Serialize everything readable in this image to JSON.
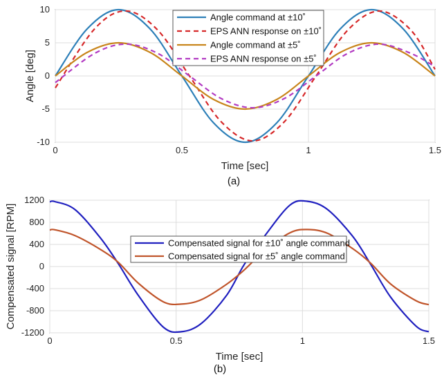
{
  "chart_data": [
    {
      "type": "line",
      "caption": "(a)",
      "xlabel": "Time [sec]",
      "ylabel": "Angle [deg]",
      "xlim": [
        0,
        1.5
      ],
      "ylim": [
        -10,
        10
      ],
      "xticks": [
        "0",
        "0.5",
        "1",
        "1.5"
      ],
      "yticks": [
        "-10",
        "-5",
        "0",
        "5",
        "10"
      ],
      "grid": true,
      "legend_position": "top-right",
      "series": [
        {
          "name": "Angle command at ±10˚",
          "color": "#2c7fb8",
          "dash": "solid",
          "x": [
            0,
            0.125,
            0.25,
            0.375,
            0.5,
            0.625,
            0.75,
            0.875,
            1.0,
            1.125,
            1.25,
            1.375,
            1.5
          ],
          "y": [
            0,
            7.07,
            10,
            7.07,
            0,
            -7.07,
            -10,
            -7.07,
            0,
            7.07,
            10,
            7.07,
            0
          ]
        },
        {
          "name": "EPS ANN response on ±10˚",
          "color": "#d62728",
          "dash": "dashed",
          "x": [
            0,
            0.155,
            0.28,
            0.405,
            0.53,
            0.655,
            0.78,
            0.905,
            1.03,
            1.155,
            1.28,
            1.405,
            1.5
          ],
          "y": [
            -1.8,
            7.1,
            9.8,
            6.9,
            0,
            -6.9,
            -9.8,
            -6.9,
            0,
            6.9,
            9.8,
            6.9,
            1.0
          ]
        },
        {
          "name": "Angle command at ±5˚",
          "color": "#c8841a",
          "dash": "solid",
          "x": [
            0,
            0.125,
            0.25,
            0.375,
            0.5,
            0.625,
            0.75,
            0.875,
            1.0,
            1.125,
            1.25,
            1.375,
            1.5
          ],
          "y": [
            0,
            3.54,
            5,
            3.54,
            0,
            -3.54,
            -5,
            -3.54,
            0,
            3.54,
            5,
            3.54,
            0
          ]
        },
        {
          "name": "EPS ANN response on ±5˚",
          "color": "#b23ac2",
          "dash": "dashed",
          "x": [
            0,
            0.155,
            0.28,
            0.405,
            0.53,
            0.655,
            0.78,
            0.905,
            1.03,
            1.155,
            1.28,
            1.405,
            1.5
          ],
          "y": [
            -1.0,
            3.4,
            4.8,
            3.4,
            0,
            -3.4,
            -4.8,
            -3.4,
            0,
            3.4,
            4.8,
            3.4,
            1.4
          ]
        }
      ]
    },
    {
      "type": "line",
      "caption": "(b)",
      "xlabel": "Time [sec]",
      "ylabel": "Compensated signal [RPM]",
      "xlim": [
        0,
        1.5
      ],
      "ylim": [
        -1200,
        1200
      ],
      "xticks": [
        "0",
        "0.5",
        "1",
        "1.5"
      ],
      "yticks": [
        "-1200",
        "-800",
        "-400",
        "0",
        "400",
        "800",
        "1200"
      ],
      "grid": true,
      "legend_position": "center",
      "series": [
        {
          "name": "Compensated signal for ±10˚ angle command",
          "color": "#1f1fbf",
          "dash": "solid",
          "x": [
            0,
            0.02,
            0.1,
            0.2,
            0.27,
            0.35,
            0.45,
            0.52,
            0.6,
            0.7,
            0.77,
            0.85,
            0.95,
            1.02,
            1.1,
            1.2,
            1.27,
            1.35,
            1.45,
            1.5
          ],
          "y": [
            1170,
            1175,
            1030,
            520,
            60,
            -520,
            -1100,
            -1180,
            -1030,
            -520,
            40,
            550,
            1110,
            1180,
            1030,
            540,
            40,
            -560,
            -1080,
            -1180
          ]
        },
        {
          "name": "Compensated signal for ±5˚ angle command",
          "color": "#c0542a",
          "dash": "solid",
          "x": [
            0,
            0.02,
            0.1,
            0.2,
            0.27,
            0.35,
            0.45,
            0.52,
            0.6,
            0.7,
            0.77,
            0.85,
            0.95,
            1.02,
            1.1,
            1.2,
            1.27,
            1.35,
            1.45,
            1.5
          ],
          "y": [
            660,
            665,
            560,
            310,
            80,
            -300,
            -640,
            -680,
            -600,
            -320,
            -60,
            290,
            610,
            670,
            600,
            320,
            60,
            -320,
            -620,
            -690
          ]
        }
      ]
    }
  ]
}
